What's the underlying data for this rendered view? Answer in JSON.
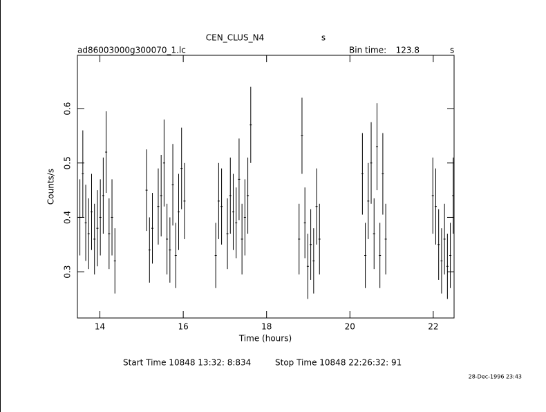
{
  "chart_data": {
    "type": "errorbar",
    "title": "CEN_CLUS_N4",
    "title_unit": "s",
    "subtitle": "ad86003000g300070_1.lc",
    "bin_label": "Bin time:",
    "bin_time": 123.8,
    "bin_unit": "s",
    "x_label": "Time (hours)",
    "y_label": "Counts/s",
    "start_time": "Start Time 10848 13:32: 8:834",
    "stop_time": "Stop Time 10848 22:26:32: 91",
    "timestamp": "28-Dec-1996 23:43",
    "color": "#000000",
    "xlim": [
      13.46,
      22.5
    ],
    "ylim": [
      0.215,
      0.698
    ],
    "xticks": [
      14,
      16,
      18,
      20,
      22
    ],
    "yticks": [
      0.3,
      0.4,
      0.5,
      0.6
    ],
    "x": [
      13.52,
      13.59,
      13.66,
      13.73,
      13.8,
      13.87,
      13.94,
      14.01,
      14.08,
      14.15,
      14.22,
      14.29,
      14.36,
      15.12,
      15.19,
      15.26,
      15.4,
      15.47,
      15.54,
      15.61,
      15.68,
      15.75,
      15.82,
      15.89,
      15.96,
      16.03,
      16.78,
      16.85,
      16.92,
      17.06,
      17.13,
      17.2,
      17.27,
      17.34,
      17.41,
      17.48,
      17.55,
      17.62,
      18.78,
      18.85,
      18.92,
      18.99,
      19.06,
      19.13,
      19.2,
      19.27,
      20.3,
      20.37,
      20.44,
      20.51,
      20.58,
      20.65,
      20.72,
      20.79,
      20.86,
      21.99,
      22.06,
      22.13,
      22.2,
      22.27,
      22.34,
      22.41,
      22.48
    ],
    "values": [
      0.4,
      0.48,
      0.39,
      0.37,
      0.41,
      0.36,
      0.38,
      0.4,
      0.44,
      0.52,
      0.37,
      0.4,
      0.32,
      0.45,
      0.34,
      0.38,
      0.42,
      0.44,
      0.5,
      0.36,
      0.34,
      0.46,
      0.33,
      0.41,
      0.49,
      0.43,
      0.33,
      0.43,
      0.42,
      0.37,
      0.44,
      0.41,
      0.39,
      0.47,
      0.36,
      0.4,
      0.44,
      0.57,
      0.36,
      0.55,
      0.39,
      0.31,
      0.35,
      0.32,
      0.42,
      0.36,
      0.48,
      0.33,
      0.43,
      0.5,
      0.37,
      0.53,
      0.33,
      0.48,
      0.36,
      0.44,
      0.42,
      0.35,
      0.32,
      0.36,
      0.31,
      0.33,
      0.44
    ],
    "errors": [
      0.07,
      0.08,
      0.07,
      0.065,
      0.07,
      0.065,
      0.07,
      0.07,
      0.07,
      0.075,
      0.065,
      0.07,
      0.06,
      0.075,
      0.06,
      0.065,
      0.07,
      0.075,
      0.08,
      0.065,
      0.06,
      0.075,
      0.06,
      0.07,
      0.075,
      0.07,
      0.06,
      0.07,
      0.07,
      0.065,
      0.07,
      0.07,
      0.065,
      0.075,
      0.065,
      0.07,
      0.07,
      0.07,
      0.065,
      0.07,
      0.065,
      0.06,
      0.065,
      0.06,
      0.07,
      0.065,
      0.075,
      0.06,
      0.07,
      0.075,
      0.065,
      0.08,
      0.06,
      0.075,
      0.065,
      0.07,
      0.07,
      0.065,
      0.06,
      0.065,
      0.06,
      0.06,
      0.07
    ]
  }
}
